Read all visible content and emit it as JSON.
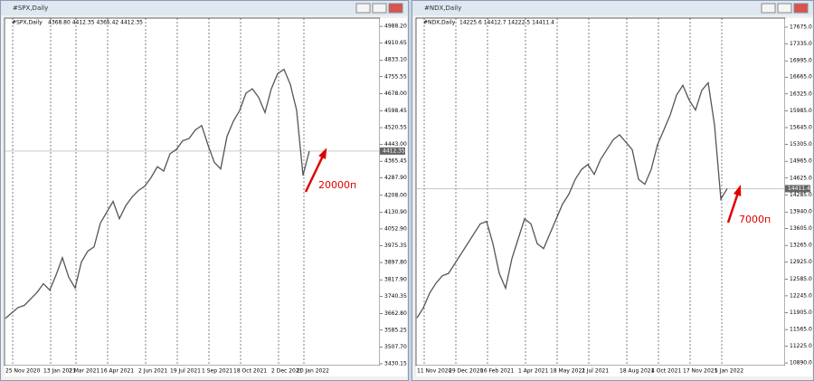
{
  "chart_data": [
    {
      "type": "line",
      "title": "#SPX,Daily",
      "subtitle": "4368.80 4412.35 4365.42 4412.35",
      "color": "#555555",
      "categories": [
        "25 Nov 2020",
        null,
        null,
        null,
        null,
        null,
        "13 Jan 2021",
        null,
        null,
        null,
        "2 Mar 2021",
        null,
        null,
        null,
        null,
        "16 Apr 2021",
        null,
        null,
        null,
        null,
        null,
        "2 Jun 2021",
        null,
        null,
        null,
        null,
        "19 Jul 2021",
        null,
        null,
        null,
        null,
        "1 Sep 2021",
        null,
        null,
        null,
        null,
        "18 Oct 2021",
        null,
        null,
        null,
        null,
        null,
        "2 Dec 2021",
        null,
        null,
        null,
        "20 Jan 2022",
        null,
        null
      ],
      "values": [
        3640,
        3665,
        3690,
        3700,
        3730,
        3760,
        3800,
        3770,
        3840,
        3920,
        3830,
        3780,
        3900,
        3950,
        3970,
        4080,
        4130,
        4180,
        4100,
        4160,
        4200,
        4230,
        4250,
        4290,
        4340,
        4320,
        4400,
        4420,
        4460,
        4470,
        4510,
        4530,
        4440,
        4360,
        4330,
        4480,
        4550,
        4600,
        4680,
        4700,
        4660,
        4590,
        4700,
        4770,
        4790,
        4720,
        4600,
        4300,
        4412
      ],
      "ylim": [
        3430,
        5018
      ],
      "yticks": [
        {
          "value": 4988.2,
          "label": "4988.20"
        },
        {
          "value": 4910.65,
          "label": "4910.65"
        },
        {
          "value": 4833.1,
          "label": "4833.10"
        },
        {
          "value": 4755.55,
          "label": "4755.55"
        },
        {
          "value": 4678,
          "label": "4678.00"
        },
        {
          "value": 4598.45,
          "label": "4598.45"
        },
        {
          "value": 4520.55,
          "label": "4520.55"
        },
        {
          "value": 4443,
          "label": "4443.00"
        },
        {
          "value": 4365.45,
          "label": "4365.45"
        },
        {
          "value": 4287.9,
          "label": "4287.90"
        },
        {
          "value": 4208,
          "label": "4208.00"
        },
        {
          "value": 4130.9,
          "label": "4130.90"
        },
        {
          "value": 4052.9,
          "label": "4052.90"
        },
        {
          "value": 3975.35,
          "label": "3975.35"
        },
        {
          "value": 3897.8,
          "label": "3897.80"
        },
        {
          "value": 3817.9,
          "label": "3817.90"
        },
        {
          "value": 3740.35,
          "label": "3740.35"
        },
        {
          "value": 3662.8,
          "label": "3662.80"
        },
        {
          "value": 3585.25,
          "label": "3585.25"
        },
        {
          "value": 3507.7,
          "label": "3507.70"
        },
        {
          "value": 3430.15,
          "label": "3430.15"
        }
      ],
      "current_price": 4412.35,
      "annotation": "20000п",
      "grid": true
    },
    {
      "type": "line",
      "title": "#NDX,Daily",
      "subtitle": "14225.6 14412.7 14222.5 14411.4",
      "color": "#555555",
      "categories": [
        "11 Nov 2020",
        null,
        null,
        null,
        null,
        "29 Dec 2020",
        null,
        null,
        null,
        null,
        "16 Feb 2021",
        null,
        null,
        null,
        null,
        null,
        "1 Apr 2021",
        null,
        null,
        null,
        null,
        "18 May 2021",
        null,
        null,
        null,
        null,
        "2 Jul 2021",
        null,
        null,
        null,
        null,
        null,
        "18 Aug 2021",
        null,
        null,
        null,
        null,
        "4 Oct 2021",
        null,
        null,
        null,
        null,
        "17 Nov 2021",
        null,
        null,
        null,
        null,
        "5 Jan 2022",
        null,
        null
      ],
      "values": [
        11800,
        12000,
        12300,
        12500,
        12650,
        12700,
        12900,
        13100,
        13300,
        13500,
        13700,
        13750,
        13300,
        12700,
        12400,
        13000,
        13400,
        13800,
        13700,
        13300,
        13200,
        13500,
        13800,
        14100,
        14300,
        14600,
        14800,
        14900,
        14700,
        15000,
        15200,
        15400,
        15500,
        15350,
        15200,
        14600,
        14500,
        14800,
        15300,
        15600,
        15900,
        16300,
        16500,
        16200,
        16000,
        16400,
        16550,
        15700,
        14200,
        14411
      ],
      "ylim": [
        10872,
        17821
      ],
      "yticks": [
        {
          "value": 17675,
          "label": "17675.0"
        },
        {
          "value": 17335,
          "label": "17335.0"
        },
        {
          "value": 16995,
          "label": "16995.0"
        },
        {
          "value": 16665,
          "label": "16665.0"
        },
        {
          "value": 16325,
          "label": "16325.0"
        },
        {
          "value": 15985,
          "label": "15985.0"
        },
        {
          "value": 15645,
          "label": "15645.0"
        },
        {
          "value": 15305,
          "label": "15305.0"
        },
        {
          "value": 14965,
          "label": "14965.0"
        },
        {
          "value": 14625,
          "label": "14625.0"
        },
        {
          "value": 14285,
          "label": "14285.0"
        },
        {
          "value": 13940,
          "label": "13940.0"
        },
        {
          "value": 13605,
          "label": "13605.0"
        },
        {
          "value": 13265,
          "label": "13265.0"
        },
        {
          "value": 12925,
          "label": "12925.0"
        },
        {
          "value": 12585,
          "label": "12585.0"
        },
        {
          "value": 12245,
          "label": "12245.0"
        },
        {
          "value": 11905,
          "label": "11905.0"
        },
        {
          "value": 11565,
          "label": "11565.0"
        },
        {
          "value": 11225,
          "label": "11225.0"
        },
        {
          "value": 10890,
          "label": "10890.0"
        }
      ],
      "current_price": 14411.4,
      "annotation": "7000п",
      "grid": true
    }
  ]
}
